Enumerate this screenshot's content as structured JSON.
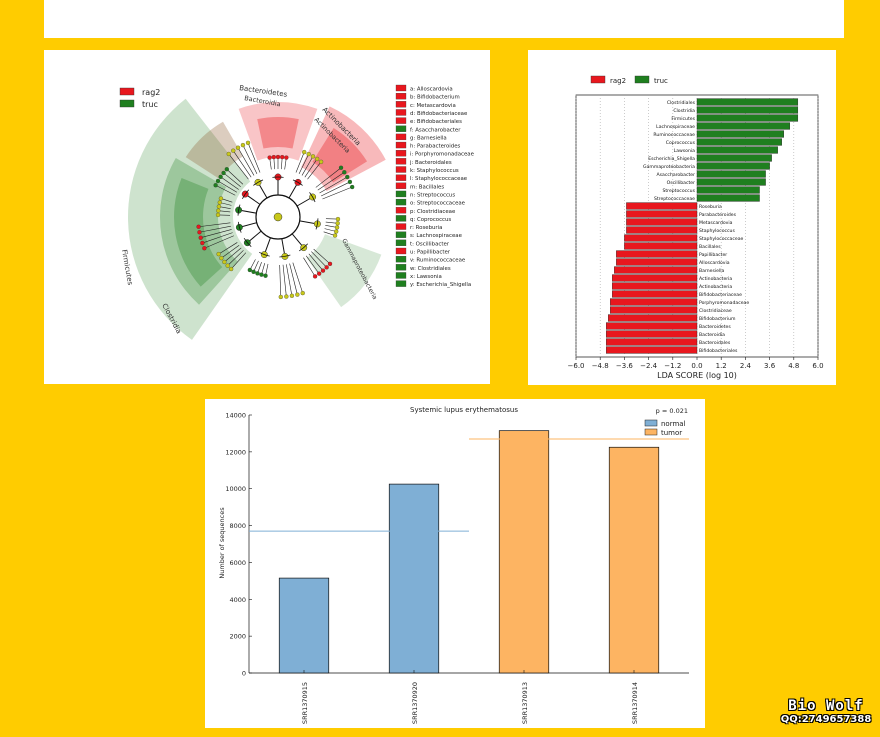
{
  "colors": {
    "background": "#FFCC00",
    "group_a": "#E8171E",
    "group_b": "#1F7F1F",
    "node": "#C8C81A",
    "normal": "#7FAFD5",
    "tumor": "#FDB462"
  },
  "cladogram": {
    "legend": [
      {
        "name": "rag2",
        "color": "#E8171E"
      },
      {
        "name": "truc",
        "color": "#1F7F1F"
      }
    ],
    "clade_labels": [
      "Bacteroidetes",
      "Bacteroidia",
      "Actinobacteria",
      "Actinobacteria",
      "Gammaproteobacteria",
      "Firmicutes",
      "Clostridia"
    ],
    "taxa": [
      {
        "key": "a",
        "name": "Alloscardovia",
        "group": "rag2"
      },
      {
        "key": "b",
        "name": "Bifidobacterium",
        "group": "rag2"
      },
      {
        "key": "c",
        "name": "Metascardovia",
        "group": "rag2"
      },
      {
        "key": "d",
        "name": "Bifidobacteriaceae",
        "group": "rag2"
      },
      {
        "key": "e",
        "name": "Bifidobacteriales",
        "group": "rag2"
      },
      {
        "key": "f",
        "name": "Asaccharobacter",
        "group": "truc"
      },
      {
        "key": "g",
        "name": "Barnesiella",
        "group": "rag2"
      },
      {
        "key": "h",
        "name": "Parabacteroides",
        "group": "rag2"
      },
      {
        "key": "i",
        "name": "Porphyromonadaceae",
        "group": "rag2"
      },
      {
        "key": "j",
        "name": "Bacteroidales",
        "group": "rag2"
      },
      {
        "key": "k",
        "name": "Staphylococcus",
        "group": "rag2"
      },
      {
        "key": "l",
        "name": "Staphylococcaceae",
        "group": "rag2"
      },
      {
        "key": "m",
        "name": "Bacillales",
        "group": "rag2"
      },
      {
        "key": "n",
        "name": "Streptococcus",
        "group": "truc"
      },
      {
        "key": "o",
        "name": "Streptococcaceae",
        "group": "truc"
      },
      {
        "key": "p",
        "name": "Clostridiaceae",
        "group": "rag2"
      },
      {
        "key": "q",
        "name": "Coprococcus",
        "group": "truc"
      },
      {
        "key": "r",
        "name": "Roseburia",
        "group": "rag2"
      },
      {
        "key": "s",
        "name": "Lachnospiraceae",
        "group": "truc"
      },
      {
        "key": "t",
        "name": "Oscillibacter",
        "group": "truc"
      },
      {
        "key": "u",
        "name": "Papillibacter",
        "group": "rag2"
      },
      {
        "key": "v",
        "name": "Ruminococcaceae",
        "group": "truc"
      },
      {
        "key": "w",
        "name": "Clostridiales",
        "group": "truc"
      },
      {
        "key": "x",
        "name": "Lawsonia",
        "group": "truc"
      },
      {
        "key": "y",
        "name": "Escherichia_Shigella",
        "group": "truc"
      }
    ]
  },
  "chart_data": [
    {
      "type": "bar",
      "orientation": "horizontal",
      "legend": [
        {
          "name": "rag2",
          "color": "#E8171E"
        },
        {
          "name": "truc",
          "color": "#1F7F1F"
        }
      ],
      "xlabel": "LDA SCORE (log 10)",
      "xticks": [
        "−6.0",
        "−4.8",
        "−3.6",
        "−2.4",
        "−1.2",
        "0.0",
        "1.2",
        "2.4",
        "3.6",
        "4.8",
        "6.0"
      ],
      "xlim": [
        -6.0,
        6.0
      ],
      "grid": "vertical dotted",
      "bars": [
        {
          "label": "Clostridiales",
          "value": 5.0,
          "group": "truc"
        },
        {
          "label": "Clostridia",
          "value": 5.0,
          "group": "truc"
        },
        {
          "label": "Firmicutes",
          "value": 5.0,
          "group": "truc"
        },
        {
          "label": "Lachnospiraceae",
          "value": 4.6,
          "group": "truc"
        },
        {
          "label": "Ruminococcaceae",
          "value": 4.3,
          "group": "truc"
        },
        {
          "label": "Coprococcus",
          "value": 4.2,
          "group": "truc"
        },
        {
          "label": "Lawsonia",
          "value": 4.0,
          "group": "truc"
        },
        {
          "label": "Escherichia_Shigella",
          "value": 3.7,
          "group": "truc"
        },
        {
          "label": "Gammaproteobacteria",
          "value": 3.6,
          "group": "truc"
        },
        {
          "label": "Asaccharobacter",
          "value": 3.4,
          "group": "truc"
        },
        {
          "label": "Oscillibacter",
          "value": 3.4,
          "group": "truc"
        },
        {
          "label": "Streptococcus",
          "value": 3.1,
          "group": "truc"
        },
        {
          "label": "Streptococcaceae",
          "value": 3.1,
          "group": "truc"
        },
        {
          "label": "Roseburia",
          "value": -3.5,
          "group": "rag2"
        },
        {
          "label": "Parabacteroides",
          "value": -3.5,
          "group": "rag2"
        },
        {
          "label": "Metascardovia",
          "value": -3.5,
          "group": "rag2"
        },
        {
          "label": "Staphylococcus",
          "value": -3.5,
          "group": "rag2"
        },
        {
          "label": "Staphylococcaceae",
          "value": -3.6,
          "group": "rag2"
        },
        {
          "label": "Bacillales",
          "value": -3.6,
          "group": "rag2"
        },
        {
          "label": "Papillibacter",
          "value": -4.0,
          "group": "rag2"
        },
        {
          "label": "Alloscardovia",
          "value": -4.0,
          "group": "rag2"
        },
        {
          "label": "Barnesiella",
          "value": -4.1,
          "group": "rag2"
        },
        {
          "label": "Actinobacteria",
          "value": -4.2,
          "group": "rag2"
        },
        {
          "label": "Actinobacteria",
          "value": -4.2,
          "group": "rag2"
        },
        {
          "label": "Bifidobacteriaceae",
          "value": -4.2,
          "group": "rag2"
        },
        {
          "label": "Porphyromonadaceae",
          "value": -4.3,
          "group": "rag2"
        },
        {
          "label": "Clostridiaceae",
          "value": -4.3,
          "group": "rag2"
        },
        {
          "label": "Bifidobacterium",
          "value": -4.4,
          "group": "rag2"
        },
        {
          "label": "Bacteroidetes",
          "value": -4.5,
          "group": "rag2"
        },
        {
          "label": "Bacteroidia",
          "value": -4.5,
          "group": "rag2"
        },
        {
          "label": "Bacteroidales",
          "value": -4.5,
          "group": "rag2"
        },
        {
          "label": "Bifidobacteriales",
          "value": -4.5,
          "group": "rag2"
        }
      ]
    },
    {
      "type": "bar",
      "title": "Systemic lupus erythematosus",
      "annotation": "p = 0.021",
      "ylabel": "Number of sequences",
      "ylim": [
        0,
        14000
      ],
      "yticks": [
        "0",
        "2000",
        "4000",
        "6000",
        "8000",
        "10000",
        "12000",
        "14000"
      ],
      "legend": [
        {
          "name": "normal",
          "color": "#7FAFD5"
        },
        {
          "name": "tumor",
          "color": "#FDB462"
        }
      ],
      "categories": [
        "SRR1370915",
        "SRR1370920",
        "SRR1370913",
        "SRR1370914"
      ],
      "values": [
        5150,
        10250,
        13150,
        12250
      ],
      "groups": [
        "normal",
        "normal",
        "tumor",
        "tumor"
      ],
      "group_means": {
        "normal": 7700,
        "tumor": 12700
      }
    }
  ],
  "watermark": {
    "title": "Bio Wolf",
    "qq": "QQ:2749657388"
  }
}
